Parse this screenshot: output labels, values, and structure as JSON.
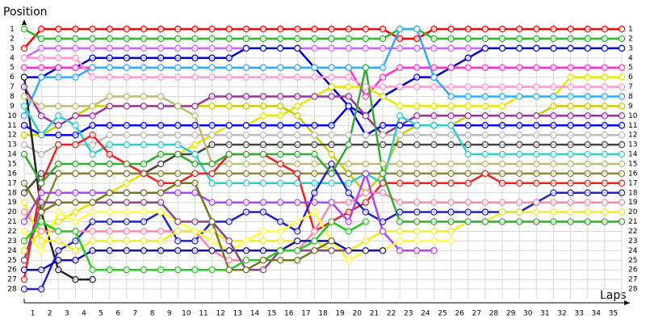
{
  "chart_data": {
    "type": "lapchart",
    "title": "Position",
    "x_label": "Laps",
    "categories": [
      null,
      "1",
      "2",
      "3",
      "4",
      "5",
      "6",
      "7",
      "8",
      "9",
      "10",
      "11",
      "12",
      "13",
      "14",
      "15",
      "16",
      "17",
      "18",
      "19",
      "20",
      "21",
      "22",
      "23",
      "24",
      "25",
      "26",
      "27",
      "28",
      "29",
      "30",
      "31",
      "32",
      "33",
      "34",
      "35"
    ],
    "ylim": [
      28.5,
      0.5
    ],
    "yticks": [
      1,
      2,
      3,
      4,
      5,
      6,
      7,
      8,
      9,
      10,
      11,
      12,
      13,
      14,
      15,
      16,
      17,
      18,
      19,
      20,
      21,
      22,
      23,
      24,
      25,
      26,
      27,
      28
    ],
    "grid": true,
    "series": [
      {
        "color": "#ff0000",
        "values": [
          3,
          1,
          1,
          1,
          1,
          1,
          1,
          1,
          1,
          1,
          1,
          1,
          1,
          1,
          1,
          1,
          1,
          1,
          1,
          1,
          1,
          1,
          2,
          2,
          1,
          1,
          1,
          1,
          1,
          1,
          1,
          1,
          1,
          1,
          1,
          1
        ]
      },
      {
        "color": "#2db82d",
        "values": [
          1,
          2,
          2,
          2,
          2,
          2,
          2,
          2,
          2,
          2,
          2,
          2,
          2,
          2,
          2,
          2,
          2,
          2,
          2,
          2,
          2,
          2,
          1,
          1,
          2,
          2,
          2,
          2,
          2,
          2,
          2,
          2,
          2,
          2,
          2,
          2
        ]
      },
      {
        "color": "#cc66ff",
        "values": [
          4,
          3,
          3,
          3,
          3,
          3,
          3,
          3,
          3,
          3,
          3,
          3,
          3,
          3,
          3,
          3,
          3,
          3,
          3,
          3,
          3,
          3,
          3,
          3,
          3,
          3,
          3,
          3,
          3,
          3,
          3,
          3,
          3,
          3,
          3,
          3
        ]
      },
      {
        "color": "#0000cc",
        "values": [
          6,
          6,
          5,
          5,
          4,
          4,
          4,
          4,
          4,
          4,
          4,
          4,
          4,
          3,
          3,
          3,
          3,
          5,
          7,
          9,
          10,
          8,
          7,
          6,
          6,
          5,
          4,
          3,
          3,
          3,
          3,
          3,
          3,
          3,
          3,
          3
        ]
      },
      {
        "color": "#ff33cc",
        "values": [
          5,
          5,
          5,
          5,
          5,
          5,
          5,
          5,
          5,
          5,
          5,
          5,
          5,
          5,
          5,
          5,
          5,
          5,
          5,
          5,
          8,
          6,
          5,
          5,
          5,
          5,
          5,
          5,
          5,
          5,
          5,
          5,
          5,
          5,
          5,
          5
        ]
      },
      {
        "color": "#e6e600",
        "values": [
          24,
          22,
          21,
          20,
          19,
          18,
          17,
          16,
          15,
          14,
          13,
          12,
          11,
          11,
          10,
          10,
          9,
          8,
          7,
          7,
          7,
          8,
          9,
          9,
          9,
          9,
          9,
          9,
          9,
          8,
          8,
          8,
          6,
          6,
          6,
          6
        ]
      },
      {
        "color": "#ff99cc",
        "values": [
          4,
          4,
          4,
          4,
          6,
          6,
          6,
          6,
          6,
          6,
          6,
          6,
          6,
          6,
          6,
          6,
          6,
          6,
          6,
          6,
          7,
          7,
          7,
          7,
          7,
          7,
          7,
          7,
          7,
          7,
          7,
          7,
          7,
          7,
          7,
          7
        ]
      },
      {
        "color": "#33aaff",
        "values": [
          10,
          6,
          6,
          6,
          5,
          5,
          5,
          5,
          5,
          5,
          5,
          5,
          5,
          5,
          5,
          5,
          5,
          5,
          5,
          5,
          5,
          5,
          1,
          1,
          6,
          8,
          8,
          8,
          8,
          8,
          8,
          8,
          8,
          8,
          8,
          8
        ]
      },
      {
        "color": "#cccc00",
        "values": [
          12,
          12,
          11,
          10,
          9,
          9,
          9,
          9,
          9,
          9,
          9,
          9,
          9,
          9,
          9,
          9,
          10,
          12,
          14,
          16,
          18,
          16,
          12,
          11,
          11,
          11,
          10,
          10,
          10,
          10,
          10,
          9,
          9,
          9,
          9,
          9
        ]
      },
      {
        "color": "#993399",
        "values": [
          7,
          10,
          11,
          10,
          10,
          9,
          9,
          9,
          9,
          9,
          9,
          8,
          8,
          8,
          8,
          8,
          8,
          8,
          8,
          8,
          10,
          12,
          11,
          10,
          10,
          10,
          10,
          10,
          10,
          10,
          10,
          10,
          10,
          10,
          10,
          10
        ]
      },
      {
        "color": "#0000ff",
        "values": [
          11,
          12,
          12,
          12,
          11,
          11,
          11,
          11,
          11,
          11,
          11,
          11,
          11,
          11,
          11,
          11,
          11,
          11,
          11,
          9,
          12,
          11,
          11,
          11,
          11,
          11,
          11,
          11,
          11,
          11,
          11,
          11,
          11,
          11,
          11,
          11
        ]
      },
      {
        "color": "#bbbbbb",
        "values": [
          13,
          14,
          13,
          13,
          13,
          12,
          12,
          12,
          12,
          12,
          12,
          12,
          12,
          12,
          12,
          12,
          12,
          12,
          12,
          12,
          12,
          12,
          12,
          12,
          12,
          12,
          12,
          12,
          12,
          12,
          12,
          12,
          12,
          12,
          12,
          12
        ]
      },
      {
        "color": "#222222",
        "values": [
          6,
          20,
          26,
          27,
          27,
          null,
          null,
          null,
          null,
          null,
          null,
          null,
          null,
          null,
          null,
          null,
          null,
          null,
          null,
          null,
          null,
          null,
          null,
          null,
          null,
          null,
          null,
          null,
          null,
          null,
          null,
          null,
          null,
          null,
          null,
          null
        ]
      },
      {
        "color": "#444444",
        "values": [
          18,
          16,
          16,
          16,
          16,
          16,
          16,
          16,
          15,
          14,
          14,
          13,
          13,
          13,
          13,
          13,
          13,
          13,
          13,
          13,
          13,
          13,
          13,
          13,
          13,
          13,
          13,
          13,
          13,
          13,
          13,
          13,
          13,
          13,
          13,
          13
        ]
      },
      {
        "color": "#33cccc",
        "values": [
          9,
          12,
          10,
          11,
          14,
          13,
          13,
          13,
          13,
          13,
          14,
          17,
          17,
          17,
          17,
          17,
          17,
          17,
          17,
          17,
          16,
          17,
          10,
          11,
          11,
          11,
          14,
          14,
          14,
          14,
          14,
          14,
          14,
          14,
          14,
          14
        ]
      },
      {
        "color": "#bbbb77",
        "values": [
          8,
          9,
          9,
          9,
          9,
          8,
          8,
          8,
          8,
          9,
          10,
          15,
          15,
          15,
          15,
          15,
          15,
          15,
          15,
          15,
          15,
          15,
          15,
          15,
          15,
          15,
          15,
          15,
          15,
          15,
          15,
          15,
          15,
          15,
          15,
          15
        ]
      },
      {
        "color": "#888833",
        "values": [
          25,
          20,
          16,
          16,
          16,
          16,
          16,
          16,
          16,
          16,
          16,
          16,
          16,
          16,
          16,
          16,
          16,
          16,
          16,
          16,
          16,
          16,
          16,
          16,
          16,
          16,
          16,
          16,
          16,
          16,
          16,
          16,
          16,
          16,
          16,
          16
        ]
      },
      {
        "color": "#ee2222",
        "values": [
          27,
          17,
          13,
          13,
          12,
          14,
          15,
          16,
          17,
          17,
          16,
          16,
          14,
          14,
          14,
          15,
          16,
          22,
          21,
          20,
          19,
          17,
          17,
          17,
          17,
          17,
          17,
          16,
          17,
          17,
          17,
          17,
          17,
          17,
          17,
          17
        ]
      },
      {
        "color": "#2222cc",
        "values": [
          28,
          28,
          24,
          23,
          21,
          21,
          21,
          21,
          20,
          23,
          23,
          21,
          21,
          20,
          20,
          21,
          22,
          18,
          15,
          18,
          20,
          21,
          20,
          20,
          20,
          20,
          20,
          20,
          20,
          20,
          19,
          18,
          18,
          18,
          18,
          18
        ]
      },
      {
        "color": "#ff88aa",
        "values": [
          20,
          22,
          22,
          22,
          22,
          22,
          22,
          22,
          22,
          22,
          22,
          24,
          25,
          25,
          25,
          24,
          24,
          22,
          19,
          19,
          18,
          18,
          19,
          19,
          19,
          19,
          19,
          19,
          19,
          19,
          19,
          19,
          19,
          19,
          19,
          19
        ]
      },
      {
        "color": "#eeee22",
        "values": [
          19,
          23,
          23,
          24,
          23,
          23,
          23,
          23,
          23,
          22,
          22,
          22,
          23,
          23,
          23,
          23,
          23,
          23,
          24,
          24,
          23,
          22,
          22,
          22,
          22,
          22,
          21,
          21,
          20,
          20,
          20,
          20,
          20,
          20,
          20,
          20
        ]
      },
      {
        "color": "#33aa33",
        "values": [
          14,
          17,
          15,
          15,
          15,
          15,
          15,
          15,
          14,
          14,
          15,
          15,
          14,
          14,
          14,
          14,
          14,
          14,
          16,
          13,
          5,
          16,
          21,
          21,
          21,
          21,
          21,
          21,
          21,
          21,
          21,
          21,
          21,
          21,
          21,
          21
        ]
      },
      {
        "color": "#aa44ff",
        "values": [
          21,
          18,
          18,
          18,
          18,
          18,
          18,
          18,
          18,
          18,
          18,
          19,
          19,
          19,
          19,
          19,
          19,
          19,
          19,
          21,
          16,
          22,
          24,
          24,
          24,
          null,
          null,
          null,
          null,
          null,
          null,
          null,
          null,
          null,
          null,
          null
        ]
      },
      {
        "color": "#ffff33",
        "values": [
          22,
          24,
          20,
          21,
          20,
          20,
          20,
          20,
          20,
          21,
          22,
          23,
          24,
          23,
          22,
          22,
          21,
          20,
          23,
          25,
          24,
          24,
          23,
          23,
          23,
          23,
          null,
          null,
          null,
          null,
          null,
          null,
          null,
          null,
          null,
          null
        ]
      },
      {
        "color": "#1111aa",
        "values": [
          26,
          26,
          25,
          25,
          24,
          24,
          24,
          24,
          24,
          24,
          24,
          24,
          24,
          24,
          24,
          24,
          23,
          23,
          23,
          24,
          24,
          24,
          null,
          null,
          null,
          null,
          null,
          null,
          null,
          null,
          null,
          null,
          null,
          null,
          null,
          null
        ]
      },
      {
        "color": "#884488",
        "values": [
          25,
          19,
          19,
          19,
          19,
          19,
          19,
          19,
          19,
          21,
          21,
          21,
          23,
          26,
          26,
          24,
          24,
          24,
          24,
          24,
          null,
          null,
          null,
          null,
          null,
          null,
          null,
          null,
          null,
          null,
          null,
          null,
          null,
          null,
          null,
          null
        ]
      },
      {
        "color": "#22cc22",
        "values": [
          23,
          21,
          22,
          22,
          26,
          26,
          26,
          26,
          26,
          26,
          26,
          26,
          26,
          25,
          25,
          24,
          24,
          23,
          21,
          22,
          21,
          null,
          null,
          null,
          null,
          null,
          null,
          null,
          null,
          null,
          null,
          null,
          null,
          null,
          null,
          null
        ]
      },
      {
        "color": "#777722",
        "values": [
          17,
          20,
          19,
          19,
          19,
          18,
          18,
          18,
          18,
          17,
          17,
          21,
          26,
          26,
          25,
          25,
          25,
          24,
          23,
          null,
          null,
          null,
          null,
          null,
          null,
          null,
          null,
          null,
          null,
          null,
          null,
          null,
          null,
          null,
          null,
          null
        ]
      }
    ]
  }
}
